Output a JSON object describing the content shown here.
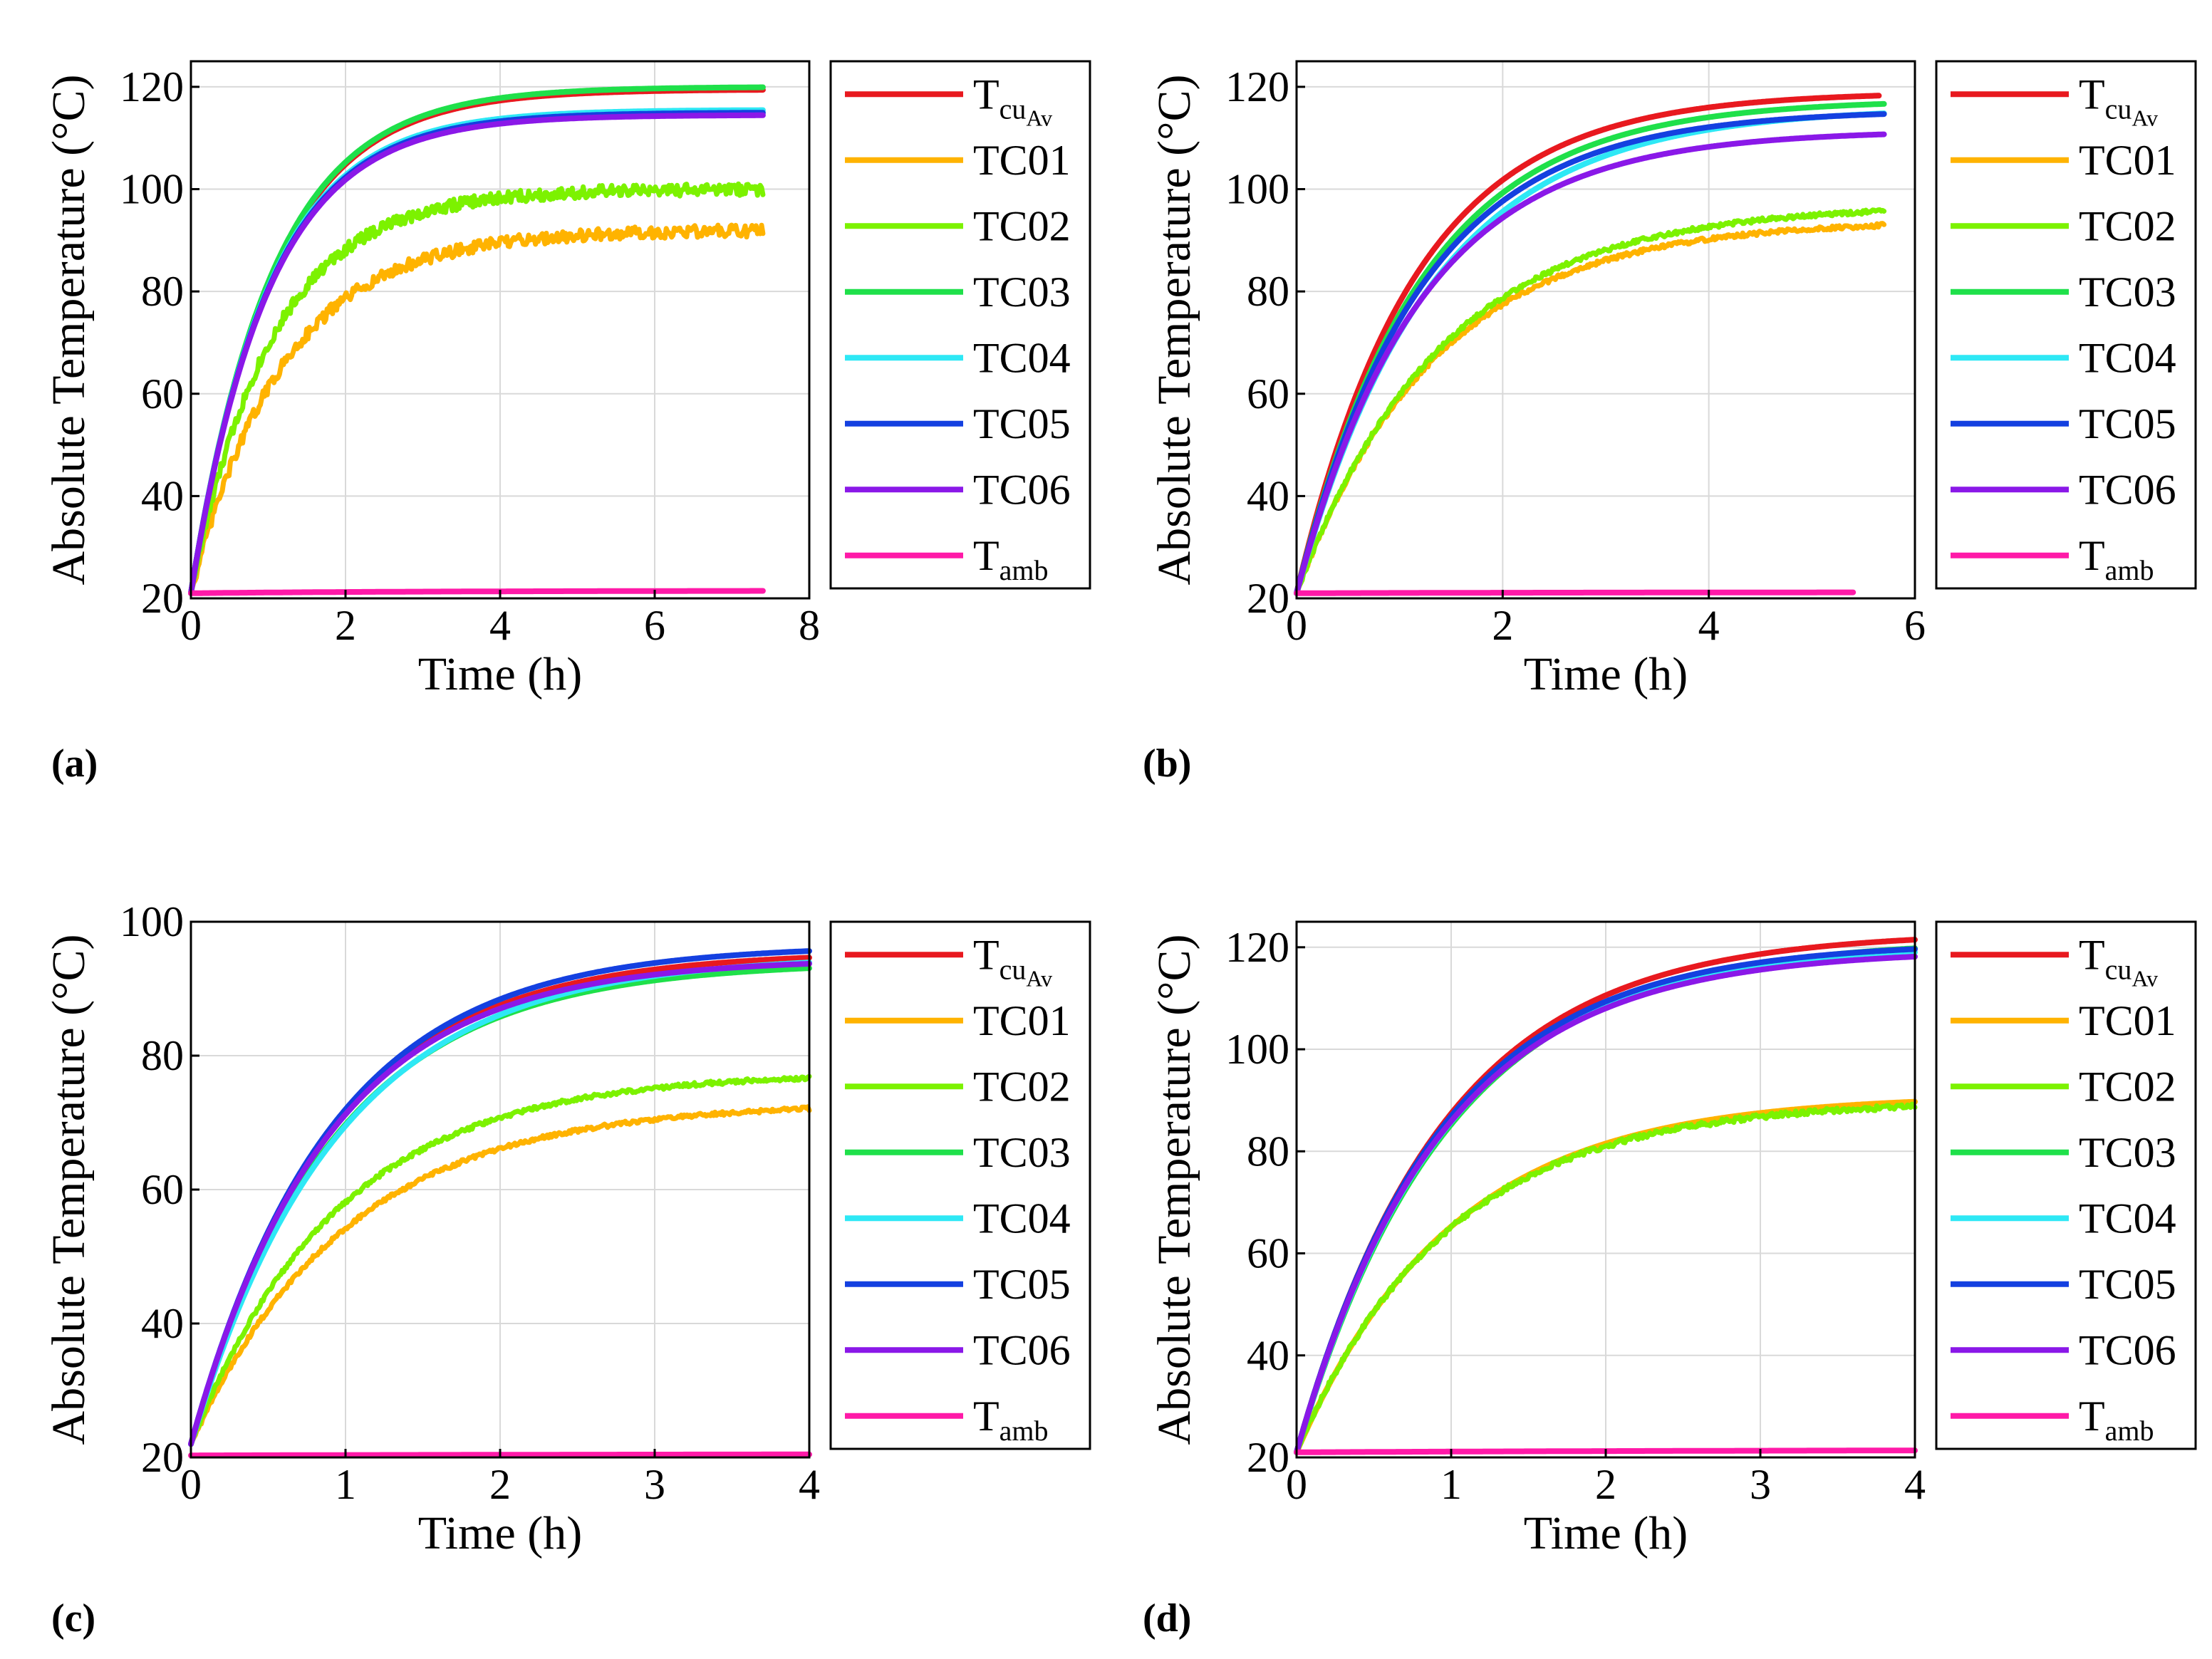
{
  "figure": {
    "panel_labels": [
      "(a)",
      "(b)",
      "(c)",
      "(d)"
    ]
  },
  "chart_data": [
    {
      "type": "line",
      "panel": "(a)",
      "xlabel": "Time (h)",
      "ylabel": "Absolute Temperature (°C)",
      "xlim": [
        0,
        8
      ],
      "ylim": [
        20,
        125
      ],
      "xticks": [
        0,
        2,
        4,
        6,
        8
      ],
      "yticks": [
        20,
        40,
        60,
        80,
        100,
        120
      ],
      "grid": true,
      "legend_position": "right-outside",
      "series": [
        {
          "name": "T_cuAv",
          "color": "#e8191f",
          "t_end": 7.4,
          "start": 21,
          "final": 119.5,
          "tau": 1.05,
          "noise": 0
        },
        {
          "name": "TC01",
          "color": "#ffb300",
          "t_end": 7.4,
          "start": 21,
          "final": 92,
          "tau": 1.2,
          "noise": 1.2
        },
        {
          "name": "TC02",
          "color": "#7cf200",
          "t_end": 7.4,
          "start": 21,
          "final": 100,
          "tau": 1.05,
          "noise": 1.2
        },
        {
          "name": "TC03",
          "color": "#1fe04a",
          "t_end": 7.4,
          "start": 21,
          "final": 120,
          "tau": 1.05,
          "noise": 0
        },
        {
          "name": "TC04",
          "color": "#2ee8f5",
          "t_end": 7.4,
          "start": 21,
          "final": 115.5,
          "tau": 1.0,
          "noise": 0
        },
        {
          "name": "TC05",
          "color": "#1440e0",
          "t_end": 7.4,
          "start": 21,
          "final": 115,
          "tau": 1.0,
          "noise": 0
        },
        {
          "name": "TC06",
          "color": "#8a18e8",
          "t_end": 7.4,
          "start": 21,
          "final": 114.5,
          "tau": 1.0,
          "noise": 0
        },
        {
          "name": "T_amb",
          "color": "#ff1aa8",
          "t_end": 7.4,
          "start": 21,
          "final": 21.5,
          "tau": 3.0,
          "noise": 0
        }
      ]
    },
    {
      "type": "line",
      "panel": "(b)",
      "xlabel": "Time (h)",
      "ylabel": "Absolute Temperature (°C)",
      "xlim": [
        0,
        6
      ],
      "ylim": [
        20,
        125
      ],
      "xticks": [
        0,
        2,
        4,
        6
      ],
      "yticks": [
        20,
        40,
        60,
        80,
        100,
        120
      ],
      "grid": true,
      "legend_position": "right-outside",
      "series": [
        {
          "name": "T_cuAv",
          "color": "#e8191f",
          "t_end": 5.65,
          "start": 21,
          "final": 119,
          "tau": 1.15,
          "noise": 0
        },
        {
          "name": "TC01",
          "color": "#ffb300",
          "t_end": 5.7,
          "start": 21,
          "final": 94,
          "tau": 1.35,
          "noise": 0.4
        },
        {
          "name": "TC02",
          "color": "#7cf200",
          "t_end": 5.7,
          "start": 21,
          "final": 97,
          "tau": 1.4,
          "noise": 0.4
        },
        {
          "name": "TC03",
          "color": "#1fe04a",
          "t_end": 5.7,
          "start": 21,
          "final": 117.5,
          "tau": 1.2,
          "noise": 0
        },
        {
          "name": "TC04",
          "color": "#2ee8f5",
          "t_end": 5.7,
          "start": 21,
          "final": 116,
          "tau": 1.3,
          "noise": 0
        },
        {
          "name": "TC05",
          "color": "#1440e0",
          "t_end": 5.7,
          "start": 21,
          "final": 115.5,
          "tau": 1.2,
          "noise": 0
        },
        {
          "name": "TC06",
          "color": "#8a18e8",
          "t_end": 5.7,
          "start": 21,
          "final": 111.5,
          "tau": 1.2,
          "noise": 0
        },
        {
          "name": "T_amb",
          "color": "#ff1aa8",
          "t_end": 5.4,
          "start": 21,
          "final": 21.2,
          "tau": 3.0,
          "noise": 0
        }
      ]
    },
    {
      "type": "line",
      "panel": "(c)",
      "xlabel": "Time (h)",
      "ylabel": "Absolute Temperature (°C)",
      "xlim": [
        0,
        4
      ],
      "ylim": [
        20,
        100
      ],
      "xticks": [
        0,
        1,
        2,
        3,
        4
      ],
      "yticks": [
        20,
        40,
        60,
        80,
        100
      ],
      "grid": true,
      "legend_position": "right-outside",
      "series": [
        {
          "name": "T_cuAv",
          "color": "#e8191f",
          "t_end": 4.0,
          "start": 22,
          "final": 95.5,
          "tau": 0.9,
          "noise": 0
        },
        {
          "name": "TC01",
          "color": "#ffb300",
          "t_end": 4.0,
          "start": 22,
          "final": 73,
          "tau": 1.0,
          "noise": 0.3
        },
        {
          "name": "TC02",
          "color": "#7cf200",
          "t_end": 4.0,
          "start": 22,
          "final": 77.5,
          "tau": 0.95,
          "noise": 0.3
        },
        {
          "name": "TC03",
          "color": "#1fe04a",
          "t_end": 4.0,
          "start": 22,
          "final": 94,
          "tau": 0.92,
          "noise": 0
        },
        {
          "name": "TC04",
          "color": "#2ee8f5",
          "t_end": 4.0,
          "start": 22,
          "final": 95,
          "tau": 0.95,
          "noise": 0
        },
        {
          "name": "TC05",
          "color": "#1440e0",
          "t_end": 4.0,
          "start": 22,
          "final": 96.5,
          "tau": 0.9,
          "noise": 0
        },
        {
          "name": "TC06",
          "color": "#8a18e8",
          "t_end": 4.0,
          "start": 22,
          "final": 94.5,
          "tau": 0.88,
          "noise": 0
        },
        {
          "name": "T_amb",
          "color": "#ff1aa8",
          "t_end": 4.0,
          "start": 20.3,
          "final": 20.5,
          "tau": 3.0,
          "noise": 0
        }
      ]
    },
    {
      "type": "line",
      "panel": "(d)",
      "xlabel": "Time (h)",
      "ylabel": "Absolute Temperature (°C)",
      "xlim": [
        0,
        4
      ],
      "ylim": [
        20,
        125
      ],
      "xticks": [
        0,
        1,
        2,
        3,
        4
      ],
      "yticks": [
        20,
        40,
        60,
        80,
        100,
        120
      ],
      "grid": true,
      "legend_position": "right-outside",
      "series": [
        {
          "name": "T_cuAv",
          "color": "#e8191f",
          "t_end": 4.0,
          "start": 21,
          "final": 123,
          "tau": 0.95,
          "noise": 0
        },
        {
          "name": "TC01",
          "color": "#ffb300",
          "t_end": 4.0,
          "start": 21,
          "final": 91,
          "tau": 1.0,
          "noise": 0
        },
        {
          "name": "TC02",
          "color": "#7cf200",
          "t_end": 4.0,
          "start": 21,
          "final": 90,
          "tau": 0.98,
          "noise": 0.5
        },
        {
          "name": "TC03",
          "color": "#1fe04a",
          "t_end": 4.0,
          "start": 21,
          "final": 121.5,
          "tau": 0.98,
          "noise": 0
        },
        {
          "name": "TC04",
          "color": "#2ee8f5",
          "t_end": 4.0,
          "start": 21,
          "final": 120.5,
          "tau": 0.95,
          "noise": 0
        },
        {
          "name": "TC05",
          "color": "#1440e0",
          "t_end": 4.0,
          "start": 21,
          "final": 121,
          "tau": 0.93,
          "noise": 0
        },
        {
          "name": "TC06",
          "color": "#8a18e8",
          "t_end": 4.0,
          "start": 21,
          "final": 119.5,
          "tau": 0.93,
          "noise": 0
        },
        {
          "name": "T_amb",
          "color": "#ff1aa8",
          "t_end": 4.0,
          "start": 21,
          "final": 21.5,
          "tau": 3.0,
          "noise": 0
        }
      ]
    }
  ]
}
